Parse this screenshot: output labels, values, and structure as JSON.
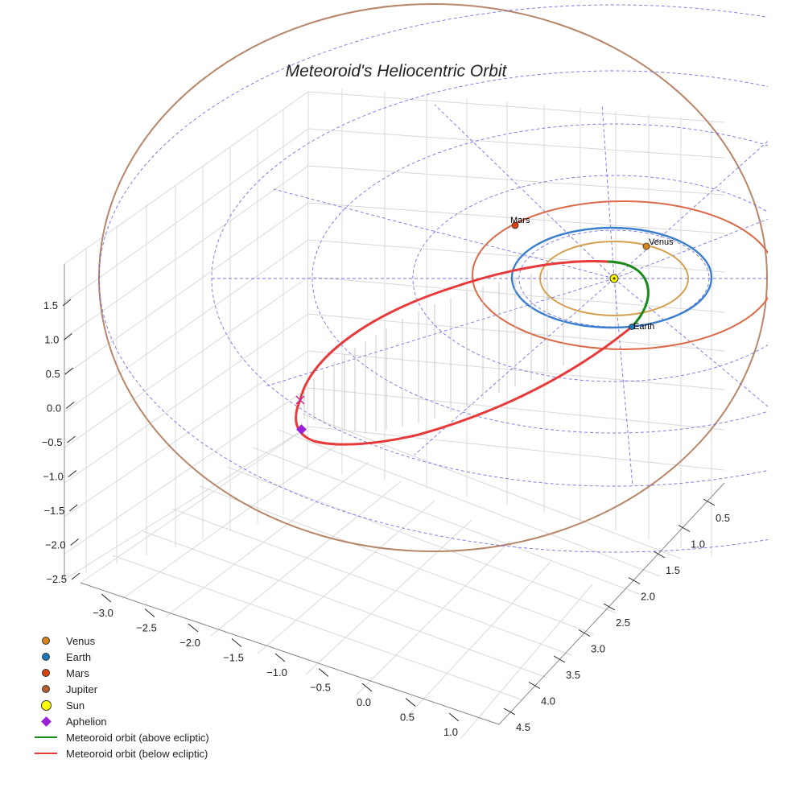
{
  "chart_data": {
    "type": "3d-line",
    "title": "Meteoroid's Heliocentric Orbit",
    "axes": {
      "x": {
        "ticks": [
          -3.0,
          -2.5,
          -2.0,
          -1.5,
          -1.0,
          -0.5,
          0.0,
          0.5,
          1.0
        ],
        "labels": [
          "−3.0",
          "−2.5",
          "−2.0",
          "−1.5",
          "−1.0",
          "−0.5",
          "0.0",
          "0.5",
          "1.0"
        ]
      },
      "y": {
        "ticks": [
          0.5,
          1.0,
          1.5,
          2.0,
          2.5,
          3.0,
          3.5,
          4.0,
          4.5
        ],
        "labels": [
          "0.5",
          "1.0",
          "1.5",
          "2.0",
          "2.5",
          "3.0",
          "3.5",
          "4.0",
          "4.5"
        ]
      },
      "z": {
        "ticks": [
          1.5,
          1.0,
          0.5,
          0.0,
          -0.5,
          -1.0,
          -1.5,
          -2.0,
          -2.5
        ],
        "labels": [
          "1.5",
          "1.0",
          "0.5",
          "0.0",
          "−0.5",
          "−1.0",
          "−1.5",
          "−2.0",
          "−2.5"
        ]
      }
    },
    "planets": [
      {
        "name": "Venus",
        "semi_major_axis_au": 0.72,
        "color": "#d4a050",
        "marker_color": "#d6841c",
        "label": "Venus"
      },
      {
        "name": "Earth",
        "semi_major_axis_au": 1.0,
        "color": "#3a7fcf",
        "marker_color": "#1f77b4",
        "label": "Earth"
      },
      {
        "name": "Mars",
        "semi_major_axis_au": 1.52,
        "color": "#dc6a48",
        "marker_color": "#d9420e",
        "label": "Mars"
      },
      {
        "name": "Jupiter",
        "semi_major_axis_au": 5.2,
        "color": "#b8866a",
        "marker_color": "#b85e2e",
        "label": ""
      }
    ],
    "sun": {
      "name": "Sun",
      "color": "#ffff00"
    },
    "aphelion": {
      "name": "Aphelion",
      "color": "#9b1fd6"
    },
    "series": [
      {
        "name": "Meteoroid orbit (above ecliptic)",
        "color": "#1a8a1a"
      },
      {
        "name": "Meteoroid orbit (below ecliptic)",
        "color": "#e83a3a"
      }
    ]
  },
  "legend": [
    {
      "label": "Venus",
      "kind": "dot",
      "color": "#d6841c"
    },
    {
      "label": "Earth",
      "kind": "dot",
      "color": "#1f77b4"
    },
    {
      "label": "Mars",
      "kind": "dot",
      "color": "#d9420e"
    },
    {
      "label": "Jupiter",
      "kind": "dot",
      "color": "#b85e2e"
    },
    {
      "label": "Sun",
      "kind": "sun",
      "color": "#ffff00"
    },
    {
      "label": "Aphelion",
      "kind": "diamond",
      "color": "#9b1fd6"
    },
    {
      "label": "Meteoroid orbit (above ecliptic)",
      "kind": "line",
      "color": "#1a8a1a"
    },
    {
      "label": "Meteoroid orbit (below ecliptic)",
      "kind": "line",
      "color": "#e83a3a"
    }
  ]
}
